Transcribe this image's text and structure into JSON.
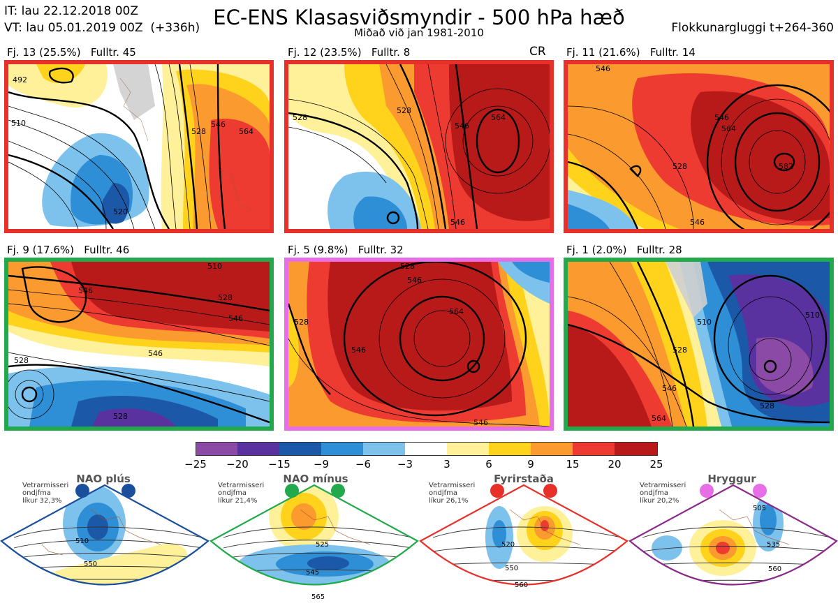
{
  "header": {
    "it_line": "IT: lau 22.12.2018 00Z",
    "vt_line": "VT: lau 05.01.2019 00Z  (+336h)",
    "title": "EC-ENS Klasasviðsmyndir - 500 hPa hæð",
    "subtitle": "Miðað við jan 1981-2010",
    "window": "Flokkunargluggi t+264-360"
  },
  "panels": [
    {
      "label": "Fj. 13 (25.5%)   Fulltr. 45",
      "border": "#e8302a",
      "contours": [
        "492",
        "510",
        "528",
        "546",
        "564",
        "520",
        "546",
        "564"
      ]
    },
    {
      "label": "Fj. 12 (23.5%)   Fulltr. 8",
      "border": "#e8302a",
      "tag": "CR",
      "contours": [
        "528",
        "528",
        "546",
        "564",
        "546"
      ]
    },
    {
      "label": "Fj. 11 (21.6%)   Fulltr. 14",
      "border": "#e8302a",
      "contours": [
        "546",
        "546",
        "564",
        "582",
        "528",
        "546"
      ]
    },
    {
      "label": "Fj. 9 (17.6%)   Fulltr. 46",
      "border": "#22a94b",
      "contours": [
        "546",
        "510",
        "528",
        "546",
        "546",
        "528",
        "528"
      ]
    },
    {
      "label": "Fj. 5 (9.8%)   Fulltr. 32",
      "border": "#e86ee8",
      "contours": [
        "528",
        "546",
        "564",
        "546",
        "528",
        "546"
      ]
    },
    {
      "label": "Fj. 1 (2.0%)   Fulltr. 28",
      "border": "#22a94b",
      "contours": [
        "510",
        "510",
        "528",
        "546",
        "564",
        "528"
      ]
    }
  ],
  "colorbar": {
    "ticks": [
      "−25",
      "−20",
      "−15",
      "−9",
      "−6",
      "−3",
      "3",
      "6",
      "9",
      "15",
      "20",
      "25"
    ],
    "colors": [
      "#8a4aa6",
      "#5a32a0",
      "#1c58a8",
      "#2e8fd6",
      "#7dc2ec",
      "#ffffff",
      "#fff199",
      "#ffd21c",
      "#fb9a2e",
      "#ee3b32",
      "#b81a1a"
    ]
  },
  "regimes": [
    {
      "title": "NAO plús",
      "note": "Vetrarmisseri\nondjfma\nlíkur 32,3%",
      "edge": "#1a4f9c",
      "dot": "#1a4f9c",
      "contours": [
        "510",
        "550"
      ]
    },
    {
      "title": "NAO mínus",
      "note": "Vetrarmisseri\nondjfma\nlíkur 21,4%",
      "edge": "#22a94b",
      "dot": "#22a94b",
      "contours": [
        "525",
        "545",
        "565"
      ]
    },
    {
      "title": "Fyrirstaða",
      "note": "Vetrarmisseri\nondjfma\nlíkur 26,1%",
      "edge": "#e8302a",
      "dot": "#e8302a",
      "contours": [
        "520",
        "550",
        "560"
      ]
    },
    {
      "title": "Hryggur",
      "note": "Vetrarmisseri\nondjfma\nlíkur 20,2%",
      "edge": "#8a2a8a",
      "dot": "#e86ee8",
      "contours": [
        "505",
        "535",
        "560"
      ]
    }
  ]
}
